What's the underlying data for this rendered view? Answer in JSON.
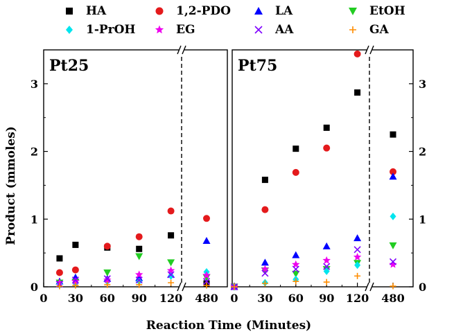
{
  "chart_data": {
    "type": "scatter",
    "xlabel": "Reaction Time (Minutes)",
    "ylabel": "Product (mmoles)",
    "ylim": [
      0,
      3.5
    ],
    "y_ticks": [
      0,
      1,
      2,
      3
    ],
    "x_ticks_main": [
      0,
      30,
      60,
      90,
      120
    ],
    "x_tick_break": 480,
    "legend_position": "top, above plot, 2 rows",
    "panels": [
      {
        "id": "pt25",
        "title": "Pt25",
        "series": [
          {
            "name": "HA",
            "color": "#000000",
            "marker": "square",
            "points": [
              [
                15,
                0.42
              ],
              [
                30,
                0.62
              ],
              [
                60,
                0.58
              ],
              [
                90,
                0.56
              ],
              [
                120,
                0.76
              ],
              [
                480,
                0.05
              ]
            ]
          },
          {
            "name": "1,2-PDO",
            "color": "#e41a1c",
            "marker": "circle",
            "points": [
              [
                15,
                0.21
              ],
              [
                30,
                0.25
              ],
              [
                60,
                0.6
              ],
              [
                90,
                0.74
              ],
              [
                120,
                1.12
              ],
              [
                480,
                1.01
              ]
            ]
          },
          {
            "name": "LA",
            "color": "#0000ff",
            "marker": "triangle-up",
            "points": [
              [
                15,
                0.08
              ],
              [
                30,
                0.14
              ],
              [
                60,
                0.12
              ],
              [
                90,
                0.13
              ],
              [
                120,
                0.18
              ],
              [
                480,
                0.68
              ]
            ]
          },
          {
            "name": "EtOH",
            "color": "#22cc22",
            "marker": "triangle-down",
            "points": [
              [
                15,
                0.06
              ],
              [
                30,
                0.07
              ],
              [
                60,
                0.21
              ],
              [
                90,
                0.45
              ],
              [
                120,
                0.36
              ],
              [
                480,
                0.14
              ]
            ]
          },
          {
            "name": "1-PrOH",
            "color": "#00e5ee",
            "marker": "diamond",
            "points": [
              [
                15,
                0.04
              ],
              [
                30,
                0.05
              ],
              [
                60,
                0.08
              ],
              [
                90,
                0.08
              ],
              [
                120,
                0.16
              ],
              [
                480,
                0.22
              ]
            ]
          },
          {
            "name": "EG",
            "color": "#ee00ee",
            "marker": "star",
            "points": [
              [
                15,
                0.06
              ],
              [
                30,
                0.08
              ],
              [
                60,
                0.1
              ],
              [
                90,
                0.18
              ],
              [
                120,
                0.24
              ],
              [
                480,
                0.17
              ]
            ]
          },
          {
            "name": "AA",
            "color": "#7f00ff",
            "marker": "cross",
            "points": [
              [
                15,
                0.04
              ],
              [
                30,
                0.1
              ],
              [
                60,
                0.12
              ],
              [
                90,
                0.1
              ],
              [
                120,
                0.18
              ],
              [
                480,
                0.08
              ]
            ]
          },
          {
            "name": "GA",
            "color": "#ff8c00",
            "marker": "plus",
            "points": [
              [
                15,
                0.01
              ],
              [
                30,
                0.02
              ],
              [
                60,
                0.03
              ],
              [
                90,
                0.03
              ],
              [
                120,
                0.06
              ],
              [
                480,
                0.02
              ]
            ]
          }
        ]
      },
      {
        "id": "pt75",
        "title": "Pt75",
        "series": [
          {
            "name": "HA",
            "color": "#000000",
            "marker": "square",
            "points": [
              [
                0,
                0
              ],
              [
                30,
                1.58
              ],
              [
                60,
                2.04
              ],
              [
                90,
                2.35
              ],
              [
                120,
                2.87
              ],
              [
                480,
                2.25
              ]
            ]
          },
          {
            "name": "1,2-PDO",
            "color": "#e41a1c",
            "marker": "circle",
            "points": [
              [
                0,
                0
              ],
              [
                30,
                1.14
              ],
              [
                60,
                1.69
              ],
              [
                90,
                2.05
              ],
              [
                120,
                3.44
              ],
              [
                480,
                1.7
              ]
            ]
          },
          {
            "name": "LA",
            "color": "#0000ff",
            "marker": "triangle-up",
            "points": [
              [
                0,
                0
              ],
              [
                30,
                0.36
              ],
              [
                60,
                0.47
              ],
              [
                90,
                0.6
              ],
              [
                120,
                0.72
              ],
              [
                480,
                1.63
              ]
            ]
          },
          {
            "name": "EtOH",
            "color": "#22cc22",
            "marker": "triangle-down",
            "points": [
              [
                0,
                0
              ],
              [
                30,
                0.24
              ],
              [
                60,
                0.19
              ],
              [
                90,
                0.26
              ],
              [
                120,
                0.35
              ],
              [
                480,
                0.61
              ]
            ]
          },
          {
            "name": "1-PrOH",
            "color": "#00e5ee",
            "marker": "diamond",
            "points": [
              [
                0,
                0
              ],
              [
                30,
                0.06
              ],
              [
                60,
                0.11
              ],
              [
                90,
                0.23
              ],
              [
                120,
                0.32
              ],
              [
                480,
                1.04
              ]
            ]
          },
          {
            "name": "EG",
            "color": "#ee00ee",
            "marker": "star",
            "points": [
              [
                0,
                0
              ],
              [
                30,
                0.26
              ],
              [
                60,
                0.33
              ],
              [
                90,
                0.39
              ],
              [
                120,
                0.44
              ],
              [
                480,
                0.33
              ]
            ]
          },
          {
            "name": "AA",
            "color": "#7f00ff",
            "marker": "cross",
            "points": [
              [
                0,
                0
              ],
              [
                30,
                0.2
              ],
              [
                60,
                0.26
              ],
              [
                90,
                0.3
              ],
              [
                120,
                0.55
              ],
              [
                480,
                0.37
              ]
            ]
          },
          {
            "name": "GA",
            "color": "#ff8c00",
            "marker": "plus",
            "points": [
              [
                0,
                0
              ],
              [
                30,
                0.05
              ],
              [
                60,
                0.08
              ],
              [
                90,
                0.07
              ],
              [
                120,
                0.16
              ],
              [
                480,
                0.01
              ]
            ]
          }
        ]
      }
    ]
  }
}
